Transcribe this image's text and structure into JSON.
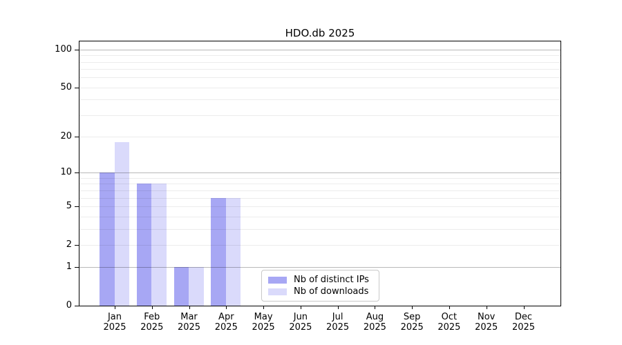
{
  "chart_data": {
    "type": "bar",
    "title": "HDO.db 2025",
    "categories": [
      "Jan",
      "Feb",
      "Mar",
      "Apr",
      "May",
      "Jun",
      "Jul",
      "Aug",
      "Sep",
      "Oct",
      "Nov",
      "Dec"
    ],
    "category_year": "2025",
    "series": [
      {
        "name": "Nb of distinct IPs",
        "color": "#a7a7f4",
        "values": [
          10,
          8,
          1,
          6,
          0,
          0,
          0,
          0,
          0,
          0,
          0,
          0
        ]
      },
      {
        "name": "Nb of downloads",
        "color": "#dadafb",
        "values": [
          18,
          8,
          1,
          6,
          0,
          0,
          0,
          0,
          0,
          0,
          0,
          0
        ]
      }
    ],
    "y_scale": "log10(1+y)",
    "yticks": [
      0,
      1,
      2,
      5,
      10,
      20,
      50,
      100
    ],
    "major_gridlines": [
      1,
      10,
      100
    ],
    "minor_gridlines": [
      2,
      3,
      4,
      5,
      6,
      7,
      8,
      9,
      20,
      30,
      40,
      50,
      60,
      70,
      80,
      90
    ],
    "ylim": [
      0,
      116
    ],
    "grid": true,
    "legend_position": "lower center"
  }
}
